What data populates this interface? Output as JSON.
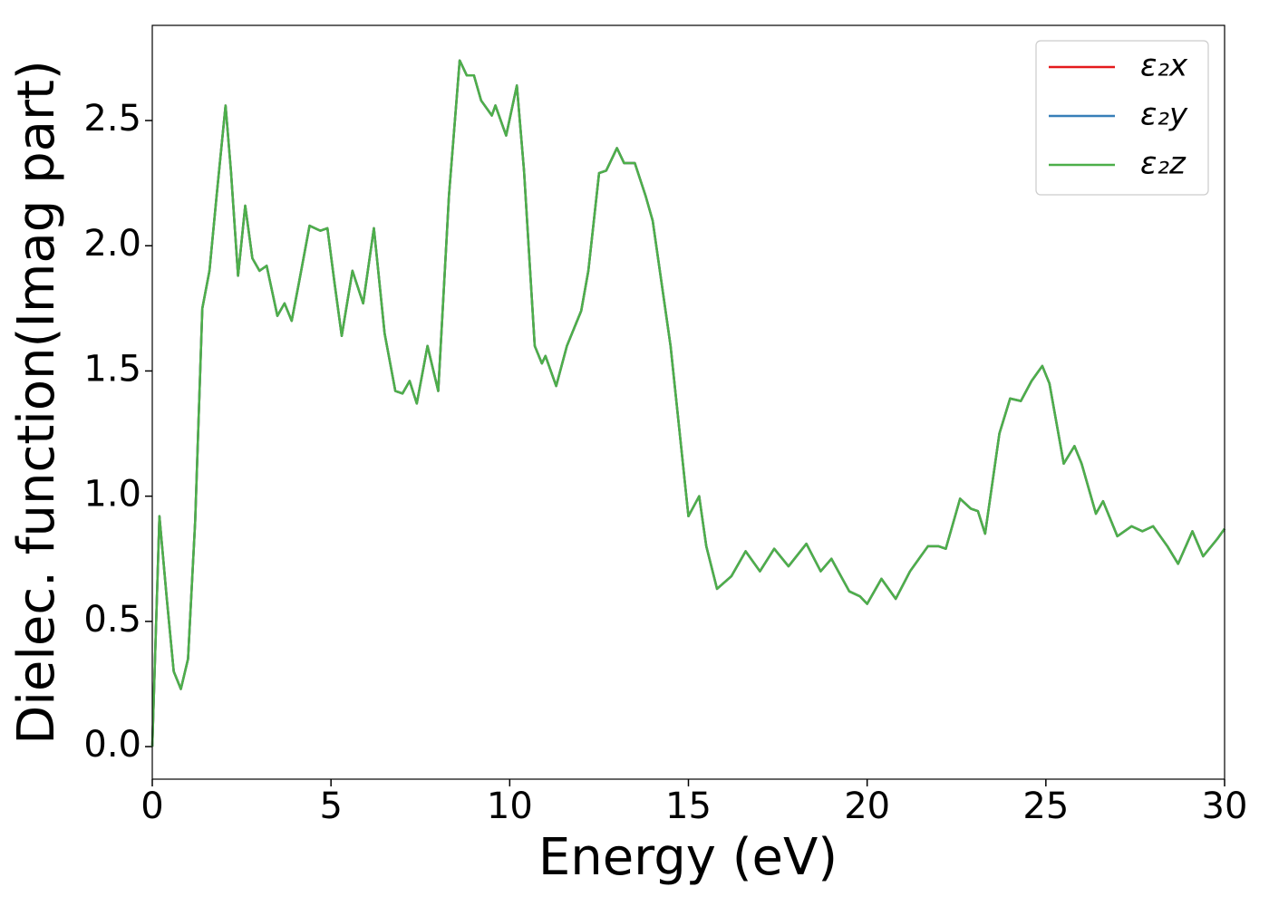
{
  "chart_data": {
    "type": "line",
    "xlabel": "Energy (eV)",
    "ylabel": "Dielec. function(Imag part)",
    "x": [
      0,
      0.2,
      0.4,
      0.6,
      0.8,
      1.0,
      1.2,
      1.4,
      1.6,
      1.8,
      2.05,
      2.2,
      2.4,
      2.6,
      2.8,
      3.0,
      3.2,
      3.5,
      3.7,
      3.9,
      4.1,
      4.4,
      4.7,
      4.9,
      5.1,
      5.3,
      5.6,
      5.9,
      6.2,
      6.5,
      6.8,
      7.0,
      7.2,
      7.4,
      7.7,
      8.0,
      8.3,
      8.6,
      8.8,
      9.0,
      9.2,
      9.5,
      9.6,
      9.9,
      10.2,
      10.4,
      10.7,
      10.9,
      11.0,
      11.3,
      11.6,
      12.0,
      12.2,
      12.5,
      12.7,
      13.0,
      13.2,
      13.5,
      13.8,
      14.0,
      14.5,
      15.0,
      15.3,
      15.5,
      15.8,
      16.2,
      16.6,
      17.0,
      17.4,
      17.8,
      18.3,
      18.7,
      19.0,
      19.5,
      19.8,
      20.0,
      20.4,
      20.8,
      21.2,
      21.7,
      22.0,
      22.2,
      22.6,
      22.9,
      23.1,
      23.3,
      23.7,
      24.0,
      24.3,
      24.6,
      24.9,
      25.1,
      25.5,
      25.8,
      26.0,
      26.4,
      26.6,
      27.0,
      27.4,
      27.7,
      28.0,
      28.4,
      28.7,
      29.1,
      29.4,
      29.8,
      30.0
    ],
    "series": [
      {
        "name": "ε₂x",
        "color": "#e41a1c",
        "values": [
          0,
          0.92,
          0.6,
          0.3,
          0.23,
          0.35,
          0.9,
          1.75,
          1.9,
          2.2,
          2.56,
          2.3,
          1.88,
          2.16,
          1.95,
          1.9,
          1.92,
          1.72,
          1.77,
          1.7,
          1.85,
          2.08,
          2.06,
          2.07,
          1.85,
          1.64,
          1.9,
          1.77,
          2.07,
          1.65,
          1.42,
          1.41,
          1.46,
          1.37,
          1.6,
          1.42,
          2.2,
          2.74,
          2.68,
          2.68,
          2.58,
          2.52,
          2.56,
          2.44,
          2.64,
          2.3,
          1.6,
          1.53,
          1.56,
          1.44,
          1.6,
          1.74,
          1.9,
          2.29,
          2.3,
          2.39,
          2.33,
          2.33,
          2.2,
          2.1,
          1.6,
          0.92,
          1.0,
          0.8,
          0.63,
          0.68,
          0.78,
          0.7,
          0.79,
          0.72,
          0.81,
          0.7,
          0.75,
          0.62,
          0.6,
          0.57,
          0.67,
          0.59,
          0.7,
          0.8,
          0.8,
          0.79,
          0.99,
          0.95,
          0.94,
          0.85,
          1.25,
          1.39,
          1.38,
          1.46,
          1.52,
          1.45,
          1.13,
          1.2,
          1.13,
          0.93,
          0.98,
          0.84,
          0.88,
          0.86,
          0.88,
          0.8,
          0.73,
          0.86,
          0.76,
          0.83,
          0.87
        ]
      },
      {
        "name": "ε₂y",
        "color": "#377eb8",
        "values": [
          0,
          0.92,
          0.6,
          0.3,
          0.23,
          0.35,
          0.9,
          1.75,
          1.9,
          2.2,
          2.56,
          2.3,
          1.88,
          2.16,
          1.95,
          1.9,
          1.92,
          1.72,
          1.77,
          1.7,
          1.85,
          2.08,
          2.06,
          2.07,
          1.85,
          1.64,
          1.9,
          1.77,
          2.07,
          1.65,
          1.42,
          1.41,
          1.46,
          1.37,
          1.6,
          1.42,
          2.2,
          2.74,
          2.68,
          2.68,
          2.58,
          2.52,
          2.56,
          2.44,
          2.64,
          2.3,
          1.6,
          1.53,
          1.56,
          1.44,
          1.6,
          1.74,
          1.9,
          2.29,
          2.3,
          2.39,
          2.33,
          2.33,
          2.2,
          2.1,
          1.6,
          0.92,
          1.0,
          0.8,
          0.63,
          0.68,
          0.78,
          0.7,
          0.79,
          0.72,
          0.81,
          0.7,
          0.75,
          0.62,
          0.6,
          0.57,
          0.67,
          0.59,
          0.7,
          0.8,
          0.8,
          0.79,
          0.99,
          0.95,
          0.94,
          0.85,
          1.25,
          1.39,
          1.38,
          1.46,
          1.52,
          1.45,
          1.13,
          1.2,
          1.13,
          0.93,
          0.98,
          0.84,
          0.88,
          0.86,
          0.88,
          0.8,
          0.73,
          0.86,
          0.76,
          0.83,
          0.87
        ]
      },
      {
        "name": "ε₂z",
        "color": "#4daf4a",
        "values": [
          0,
          0.92,
          0.6,
          0.3,
          0.23,
          0.35,
          0.9,
          1.75,
          1.9,
          2.2,
          2.56,
          2.3,
          1.88,
          2.16,
          1.95,
          1.9,
          1.92,
          1.72,
          1.77,
          1.7,
          1.85,
          2.08,
          2.06,
          2.07,
          1.85,
          1.64,
          1.9,
          1.77,
          2.07,
          1.65,
          1.42,
          1.41,
          1.46,
          1.37,
          1.6,
          1.42,
          2.2,
          2.74,
          2.68,
          2.68,
          2.58,
          2.52,
          2.56,
          2.44,
          2.64,
          2.3,
          1.6,
          1.53,
          1.56,
          1.44,
          1.6,
          1.74,
          1.9,
          2.29,
          2.3,
          2.39,
          2.33,
          2.33,
          2.2,
          2.1,
          1.6,
          0.92,
          1.0,
          0.8,
          0.63,
          0.68,
          0.78,
          0.7,
          0.79,
          0.72,
          0.81,
          0.7,
          0.75,
          0.62,
          0.6,
          0.57,
          0.67,
          0.59,
          0.7,
          0.8,
          0.8,
          0.79,
          0.99,
          0.95,
          0.94,
          0.85,
          1.25,
          1.39,
          1.38,
          1.46,
          1.52,
          1.45,
          1.13,
          1.2,
          1.13,
          0.93,
          0.98,
          0.84,
          0.88,
          0.86,
          0.88,
          0.8,
          0.73,
          0.86,
          0.76,
          0.83,
          0.87
        ]
      }
    ],
    "xlim": [
      0,
      30
    ],
    "xticks": [
      0,
      5,
      10,
      15,
      20,
      25,
      30
    ],
    "ylim": [
      -0.13,
      2.88
    ],
    "yticks": [
      {
        "value": 0,
        "label": "0.0"
      },
      0.5,
      {
        "value": 1,
        "label": "1.0"
      },
      1.5,
      {
        "value": 2,
        "label": "2.0"
      },
      2.5
    ],
    "legend": "upper right",
    "grid": false
  }
}
